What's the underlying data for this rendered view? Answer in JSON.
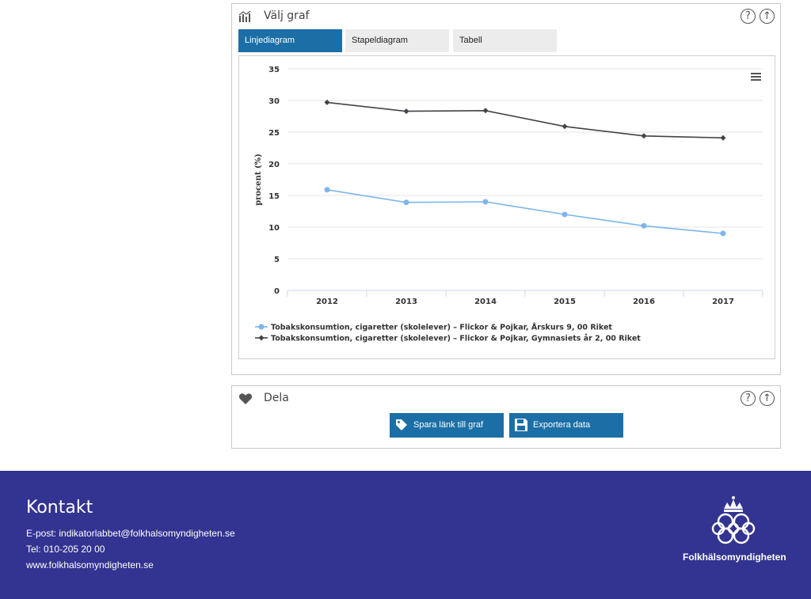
{
  "graph_panel": {
    "title": "Välj graf",
    "icon": "chart-icon",
    "help_label": "?",
    "up_label": "↑",
    "tabs": [
      {
        "label": "Linjediagram",
        "active": true
      },
      {
        "label": "Stapeldiagram",
        "active": false
      },
      {
        "label": "Tabell",
        "active": false
      }
    ]
  },
  "share_panel": {
    "title": "Dela",
    "icon": "heart-icon",
    "help_label": "?",
    "up_label": "↑",
    "save_link_label": "Spara länk till graf",
    "export_label": "Exportera data"
  },
  "chart_data": {
    "type": "line",
    "x": [
      "2012",
      "2013",
      "2014",
      "2015",
      "2016",
      "2017"
    ],
    "ylabel": "procent (%)",
    "ylim": [
      0,
      35
    ],
    "yticks": [
      0,
      5,
      10,
      15,
      20,
      25,
      30,
      35
    ],
    "grid": true,
    "legend_position": "bottom-left",
    "series": [
      {
        "name": "Tobakskonsumtion, cigaretter (skolelever) – Flickor & Pojkar, Årskurs 9, 00 Riket",
        "color": "#7cb5ec",
        "marker": "circle",
        "values": [
          15.9,
          13.9,
          14.0,
          12.0,
          10.2,
          9.0
        ]
      },
      {
        "name": "Tobakskonsumtion, cigaretter (skolelever) – Flickor & Pojkar, Gymnasiets år 2, 00 Riket",
        "color": "#434348",
        "marker": "diamond",
        "values": [
          29.7,
          28.3,
          28.4,
          25.9,
          24.4,
          24.1
        ]
      }
    ]
  },
  "footer": {
    "title": "Kontakt",
    "email": "E-post: indikatorlabbet@folkhalsomyndigheten.se",
    "phone": "Tel: 010-205 20 00",
    "website": "www.folkhalsomyndigheten.se",
    "logo_text": "Folkhälsomyndigheten",
    "background_color": "#333391"
  },
  "colors": {
    "accent": "#1b6fa6"
  }
}
